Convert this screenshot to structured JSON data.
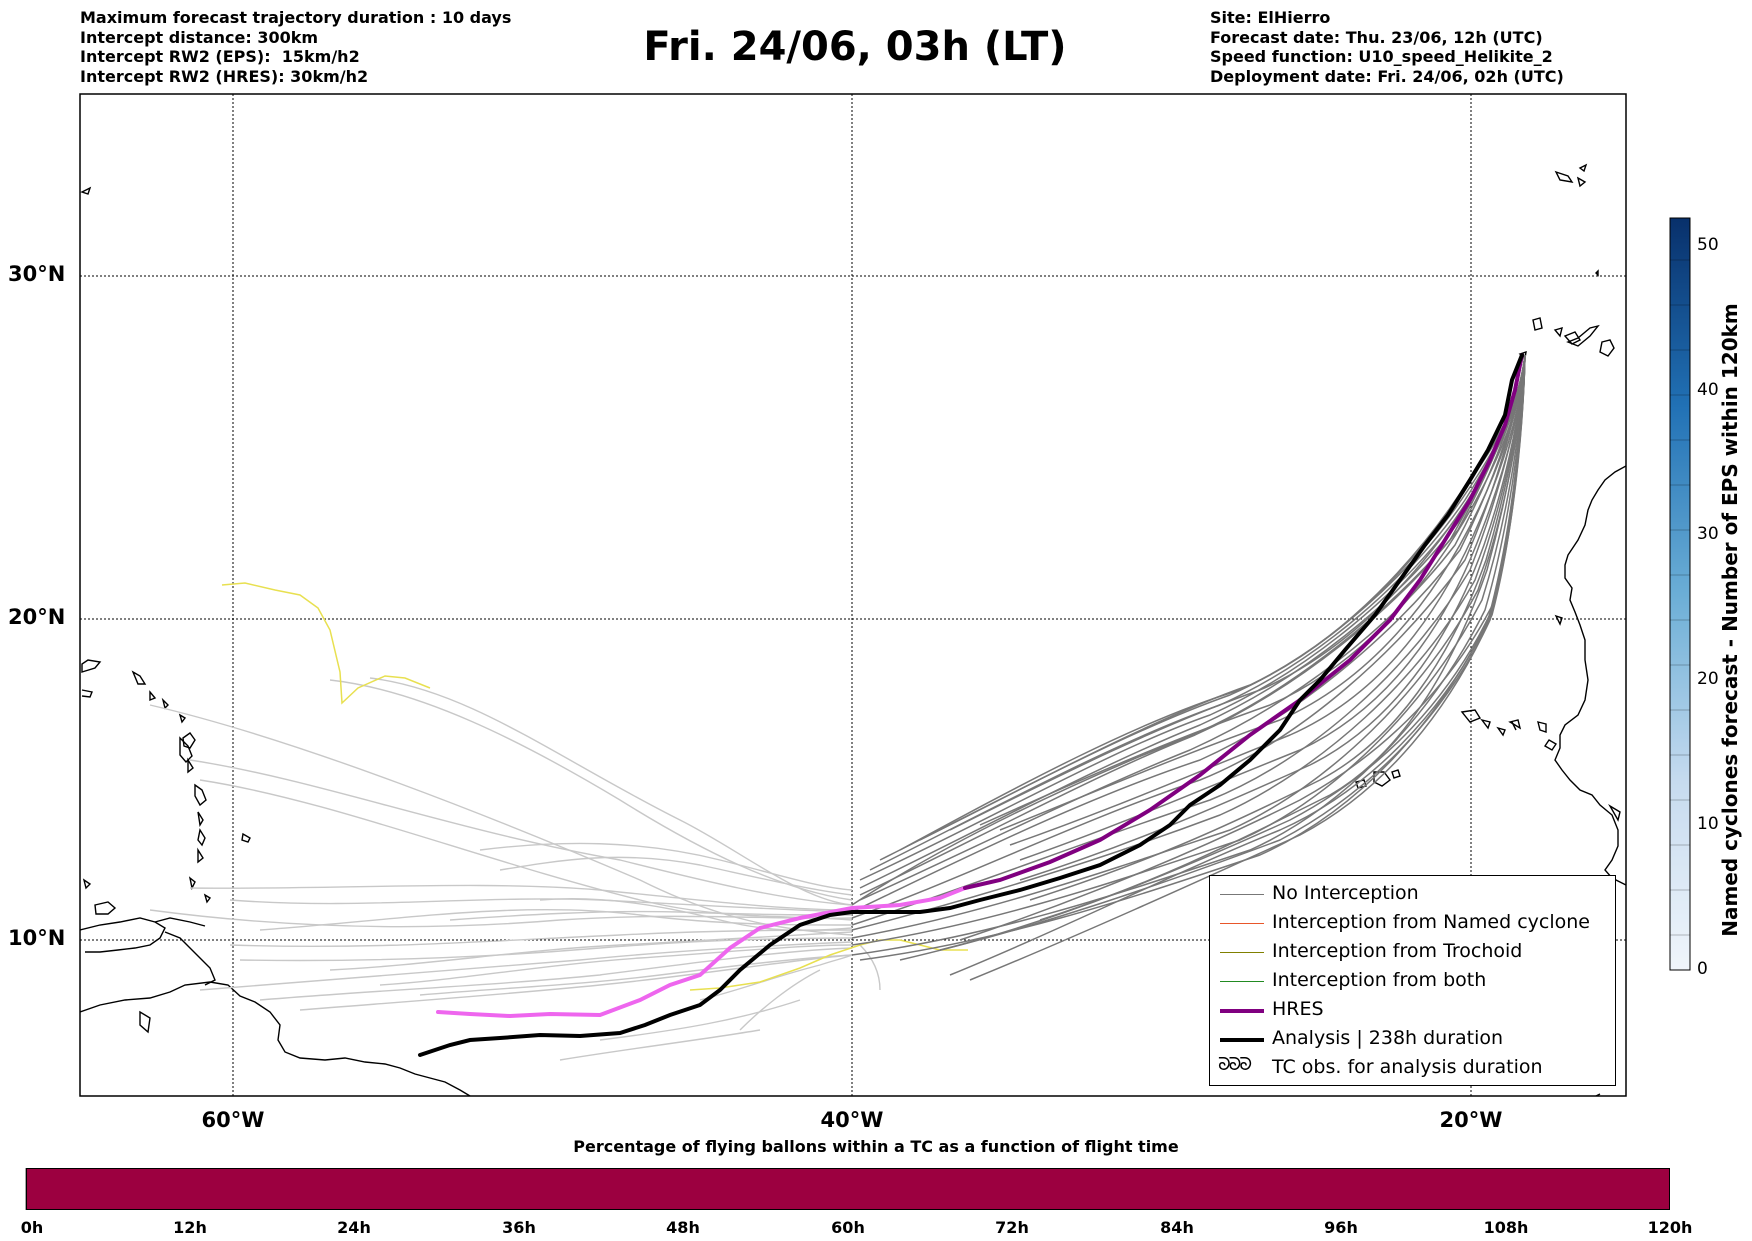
{
  "header": {
    "title": "Fri. 24/06, 03h (LT)",
    "left_info": [
      "Maximum forecast trajectory duration : 10 days",
      "Intercept distance: 300km",
      "Intercept RW2 (EPS):  15km/h2",
      "Intercept RW2 (HRES): 30km/h2"
    ],
    "right_info": [
      "Site: ElHierro",
      "Forecast date: Thu. 23/06, 12h (UTC)",
      "Speed function: U10_speed_Helikite_2",
      "Deployment date: Fri. 24/06, 02h (UTC)"
    ]
  },
  "map": {
    "latitude_labels": [
      "30°N",
      "20°N",
      "10°N"
    ],
    "longitude_labels": [
      "60°W",
      "40°W",
      "20°W"
    ]
  },
  "legend": {
    "items": [
      {
        "label": "No Interception",
        "color": "#777777"
      },
      {
        "label": "Interception from Named cyclone",
        "color": "#e8562a"
      },
      {
        "label": "Interception from Trochoid",
        "color": "#808000"
      },
      {
        "label": "Interception from both",
        "color": "#228b22"
      },
      {
        "label": "HRES",
        "color": "#800080"
      },
      {
        "label": "Analysis | 238h duration",
        "color": "#000000"
      },
      {
        "label": "TC obs. for analysis duration",
        "symbol": "ᘐᘐᘐ"
      }
    ]
  },
  "colorbar": {
    "label": "Named cyclones forecast - Number of EPS within 120km",
    "ticks": [
      "0",
      "10",
      "20",
      "30",
      "40",
      "50"
    ]
  },
  "timeline": {
    "title": "Percentage of flying ballons within a TC as a function of flight time",
    "ticks": [
      "0h",
      "12h",
      "24h",
      "36h",
      "48h",
      "60h",
      "72h",
      "84h",
      "96h",
      "108h",
      "120h"
    ],
    "bar_color": "#9c0040"
  }
}
